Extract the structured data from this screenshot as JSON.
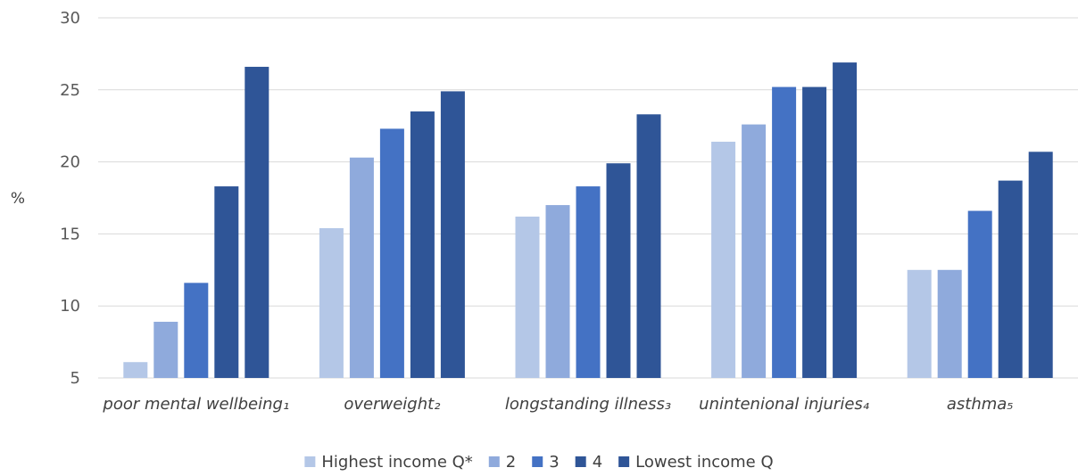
{
  "chart_data": {
    "type": "bar",
    "title": "",
    "xlabel": "",
    "ylabel": "%",
    "ylim": [
      5,
      30
    ],
    "yticks": [
      5,
      10,
      15,
      20,
      25,
      30
    ],
    "grid": true,
    "legend_position": "bottom",
    "categories": [
      "poor mental wellbeing₁",
      "overweight₂",
      "longstanding illness₃",
      "unintenional injuries₄",
      "asthma₅"
    ],
    "series": [
      {
        "name": "Highest income Q*",
        "color": "#b4c7e7",
        "values": [
          6.1,
          15.4,
          16.2,
          21.4,
          12.5
        ]
      },
      {
        "name": "2",
        "color": "#8faadc",
        "values": [
          8.9,
          20.3,
          17.0,
          22.6,
          12.5
        ]
      },
      {
        "name": "3",
        "color": "#4472c4",
        "values": [
          11.6,
          22.3,
          18.3,
          25.2,
          16.6
        ]
      },
      {
        "name": "4",
        "color": "#2f5597",
        "values": [
          18.3,
          23.5,
          19.9,
          25.2,
          18.7
        ]
      },
      {
        "name": "Lowest income Q",
        "color": "#2f5597",
        "values": [
          26.6,
          24.9,
          23.3,
          26.9,
          20.7
        ]
      }
    ]
  }
}
